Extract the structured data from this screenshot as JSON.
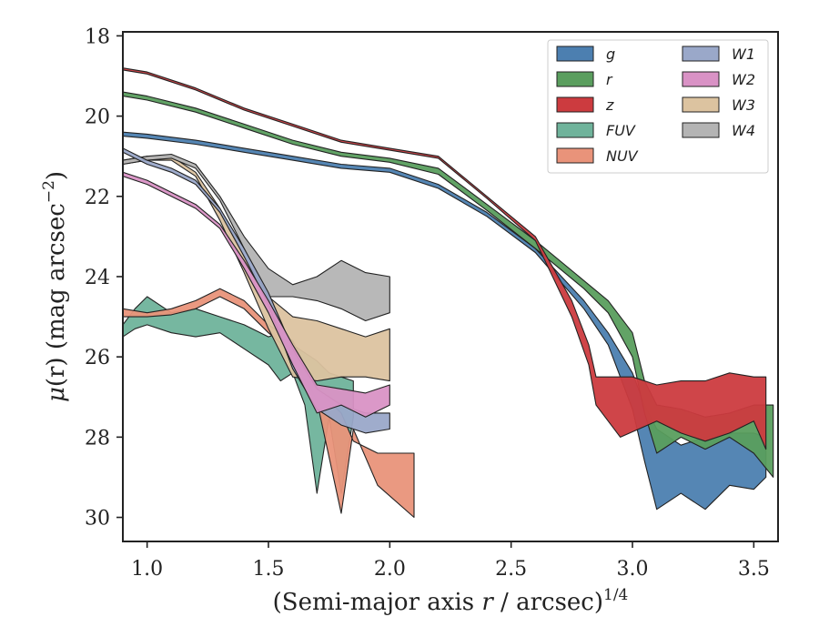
{
  "chart_data": {
    "type": "area",
    "title": "",
    "xlabel": {
      "prefix": "(Semi-major axis ",
      "var": "r",
      "suffix": " / arcsec)",
      "power": "1/4"
    },
    "ylabel": {
      "mu": "μ",
      "rest": "(r) (mag arcsec",
      "power": "−2",
      "close": ")"
    },
    "xlim": [
      0.9,
      3.6
    ],
    "ylim": [
      30.6,
      17.9
    ],
    "y_inverted": true,
    "xticks": [
      1.0,
      1.5,
      2.0,
      2.5,
      3.0,
      3.5
    ],
    "xtick_labels": [
      "1.0",
      "1.5",
      "2.0",
      "2.5",
      "3.0",
      "3.5"
    ],
    "yticks": [
      18,
      20,
      22,
      24,
      26,
      28,
      30
    ],
    "ytick_labels": [
      "18",
      "20",
      "22",
      "24",
      "26",
      "28",
      "30"
    ],
    "grid": false,
    "legend_position": "top-right",
    "legend_columns": 2,
    "series": [
      {
        "name": "g",
        "color": "#4c7fb0",
        "upper": [
          [
            0.9,
            20.4
          ],
          [
            1.0,
            20.45
          ],
          [
            1.2,
            20.6
          ],
          [
            1.4,
            20.8
          ],
          [
            1.6,
            21.0
          ],
          [
            1.8,
            21.2
          ],
          [
            2.0,
            21.3
          ],
          [
            2.2,
            21.7
          ],
          [
            2.4,
            22.4
          ],
          [
            2.6,
            23.3
          ],
          [
            2.8,
            24.6
          ],
          [
            2.9,
            25.4
          ],
          [
            3.0,
            26.4
          ],
          [
            3.05,
            27.2
          ],
          [
            3.1,
            27.8
          ],
          [
            3.2,
            28.2
          ],
          [
            3.3,
            28.0
          ],
          [
            3.4,
            27.9
          ],
          [
            3.5,
            27.9
          ],
          [
            3.55,
            28.0
          ]
        ],
        "lower": [
          [
            0.9,
            20.5
          ],
          [
            1.0,
            20.55
          ],
          [
            1.2,
            20.7
          ],
          [
            1.4,
            20.9
          ],
          [
            1.6,
            21.1
          ],
          [
            1.8,
            21.3
          ],
          [
            2.0,
            21.4
          ],
          [
            2.2,
            21.8
          ],
          [
            2.4,
            22.5
          ],
          [
            2.6,
            23.4
          ],
          [
            2.8,
            24.8
          ],
          [
            2.9,
            25.7
          ],
          [
            3.0,
            27.3
          ],
          [
            3.05,
            28.6
          ],
          [
            3.1,
            29.8
          ],
          [
            3.2,
            29.4
          ],
          [
            3.3,
            29.8
          ],
          [
            3.4,
            29.2
          ],
          [
            3.5,
            29.3
          ],
          [
            3.55,
            29.0
          ]
        ]
      },
      {
        "name": "r",
        "color": "#5a9e5e",
        "upper": [
          [
            0.9,
            19.4
          ],
          [
            1.0,
            19.5
          ],
          [
            1.2,
            19.8
          ],
          [
            1.4,
            20.2
          ],
          [
            1.6,
            20.6
          ],
          [
            1.8,
            20.9
          ],
          [
            2.0,
            21.05
          ],
          [
            2.2,
            21.3
          ],
          [
            2.4,
            22.2
          ],
          [
            2.6,
            23.1
          ],
          [
            2.8,
            24.1
          ],
          [
            2.9,
            24.6
          ],
          [
            3.0,
            25.4
          ],
          [
            3.05,
            26.6
          ],
          [
            3.1,
            27.2
          ],
          [
            3.2,
            27.3
          ],
          [
            3.3,
            27.5
          ],
          [
            3.4,
            27.4
          ],
          [
            3.5,
            27.2
          ],
          [
            3.58,
            27.2
          ]
        ],
        "lower": [
          [
            0.9,
            19.5
          ],
          [
            1.0,
            19.6
          ],
          [
            1.2,
            19.9
          ],
          [
            1.4,
            20.3
          ],
          [
            1.6,
            20.7
          ],
          [
            1.8,
            21.0
          ],
          [
            2.0,
            21.15
          ],
          [
            2.2,
            21.45
          ],
          [
            2.4,
            22.35
          ],
          [
            2.6,
            23.3
          ],
          [
            2.8,
            24.3
          ],
          [
            2.9,
            24.9
          ],
          [
            3.0,
            26.0
          ],
          [
            3.05,
            27.4
          ],
          [
            3.1,
            28.4
          ],
          [
            3.2,
            28.0
          ],
          [
            3.3,
            28.3
          ],
          [
            3.4,
            28.0
          ],
          [
            3.5,
            28.4
          ],
          [
            3.58,
            29.0
          ]
        ]
      },
      {
        "name": "z",
        "color": "#cc3b3f",
        "upper": [
          [
            0.9,
            18.8
          ],
          [
            1.0,
            18.9
          ],
          [
            1.2,
            19.3
          ],
          [
            1.4,
            19.8
          ],
          [
            1.6,
            20.2
          ],
          [
            1.8,
            20.6
          ],
          [
            2.0,
            20.8
          ],
          [
            2.2,
            21.0
          ],
          [
            2.4,
            22.0
          ],
          [
            2.6,
            23.0
          ],
          [
            2.75,
            24.6
          ],
          [
            2.82,
            25.7
          ],
          [
            2.85,
            26.5
          ],
          [
            3.0,
            26.5
          ],
          [
            3.1,
            26.7
          ],
          [
            3.2,
            26.6
          ],
          [
            3.3,
            26.6
          ],
          [
            3.4,
            26.4
          ],
          [
            3.5,
            26.5
          ],
          [
            3.55,
            26.5
          ]
        ],
        "lower": [
          [
            0.9,
            18.85
          ],
          [
            1.0,
            18.95
          ],
          [
            1.2,
            19.35
          ],
          [
            1.4,
            19.85
          ],
          [
            1.6,
            20.25
          ],
          [
            1.8,
            20.65
          ],
          [
            2.0,
            20.85
          ],
          [
            2.2,
            21.05
          ],
          [
            2.4,
            22.05
          ],
          [
            2.6,
            23.1
          ],
          [
            2.75,
            25.0
          ],
          [
            2.82,
            26.2
          ],
          [
            2.85,
            27.2
          ],
          [
            2.95,
            28.0
          ],
          [
            3.1,
            27.6
          ],
          [
            3.2,
            27.9
          ],
          [
            3.3,
            28.1
          ],
          [
            3.4,
            27.9
          ],
          [
            3.5,
            27.6
          ],
          [
            3.55,
            28.3
          ]
        ]
      },
      {
        "name": "FUV",
        "color": "#6fb39b",
        "upper": [
          [
            0.9,
            25.2
          ],
          [
            0.95,
            24.8
          ],
          [
            1.0,
            24.5
          ],
          [
            1.1,
            24.9
          ],
          [
            1.2,
            24.8
          ],
          [
            1.3,
            25.0
          ],
          [
            1.4,
            25.2
          ],
          [
            1.5,
            25.5
          ],
          [
            1.55,
            25.4
          ],
          [
            1.6,
            25.7
          ],
          [
            1.7,
            26.1
          ],
          [
            1.75,
            26.4
          ],
          [
            1.8,
            26.5
          ],
          [
            1.85,
            26.6
          ]
        ],
        "lower": [
          [
            0.9,
            25.5
          ],
          [
            0.95,
            25.3
          ],
          [
            1.0,
            25.2
          ],
          [
            1.1,
            25.4
          ],
          [
            1.2,
            25.5
          ],
          [
            1.3,
            25.4
          ],
          [
            1.4,
            25.8
          ],
          [
            1.5,
            26.2
          ],
          [
            1.55,
            26.6
          ],
          [
            1.6,
            26.4
          ],
          [
            1.65,
            27.2
          ],
          [
            1.7,
            29.4
          ],
          [
            1.75,
            27.5
          ],
          [
            1.8,
            29.4
          ],
          [
            1.85,
            27.5
          ]
        ]
      },
      {
        "name": "NUV",
        "color": "#e9937a",
        "upper": [
          [
            0.9,
            24.8
          ],
          [
            1.0,
            24.9
          ],
          [
            1.1,
            24.8
          ],
          [
            1.2,
            24.6
          ],
          [
            1.3,
            24.3
          ],
          [
            1.4,
            24.6
          ],
          [
            1.5,
            25.2
          ],
          [
            1.6,
            25.6
          ],
          [
            1.7,
            26.8
          ],
          [
            1.8,
            27.4
          ],
          [
            1.85,
            28.1
          ],
          [
            1.95,
            28.4
          ],
          [
            2.1,
            28.4
          ]
        ],
        "lower": [
          [
            0.9,
            25.0
          ],
          [
            1.0,
            25.0
          ],
          [
            1.1,
            24.95
          ],
          [
            1.2,
            24.8
          ],
          [
            1.3,
            24.5
          ],
          [
            1.4,
            24.8
          ],
          [
            1.5,
            25.4
          ],
          [
            1.6,
            25.9
          ],
          [
            1.7,
            27.1
          ],
          [
            1.8,
            29.9
          ],
          [
            1.85,
            27.8
          ],
          [
            1.95,
            29.2
          ],
          [
            2.1,
            30.0
          ]
        ]
      },
      {
        "name": "W1",
        "color": "#9aa8c9",
        "upper": [
          [
            0.9,
            20.8
          ],
          [
            1.0,
            21.1
          ],
          [
            1.1,
            21.3
          ],
          [
            1.2,
            21.6
          ],
          [
            1.3,
            22.3
          ],
          [
            1.4,
            23.3
          ],
          [
            1.5,
            24.4
          ],
          [
            1.6,
            25.8
          ],
          [
            1.7,
            26.8
          ],
          [
            1.8,
            27.2
          ],
          [
            1.9,
            27.4
          ],
          [
            2.0,
            27.4
          ]
        ],
        "lower": [
          [
            0.9,
            20.9
          ],
          [
            1.0,
            21.2
          ],
          [
            1.1,
            21.4
          ],
          [
            1.2,
            21.7
          ],
          [
            1.3,
            22.4
          ],
          [
            1.4,
            23.5
          ],
          [
            1.5,
            24.7
          ],
          [
            1.6,
            26.3
          ],
          [
            1.7,
            27.3
          ],
          [
            1.8,
            27.7
          ],
          [
            1.9,
            27.9
          ],
          [
            2.0,
            27.8
          ]
        ]
      },
      {
        "name": "W2",
        "color": "#d992c5",
        "upper": [
          [
            0.9,
            21.4
          ],
          [
            1.0,
            21.6
          ],
          [
            1.1,
            21.9
          ],
          [
            1.2,
            22.2
          ],
          [
            1.3,
            22.7
          ],
          [
            1.4,
            23.6
          ],
          [
            1.5,
            24.6
          ],
          [
            1.6,
            25.7
          ],
          [
            1.7,
            26.7
          ],
          [
            1.8,
            26.8
          ],
          [
            1.9,
            26.9
          ],
          [
            2.0,
            26.7
          ]
        ],
        "lower": [
          [
            0.9,
            21.5
          ],
          [
            1.0,
            21.7
          ],
          [
            1.1,
            22.0
          ],
          [
            1.2,
            22.3
          ],
          [
            1.3,
            22.8
          ],
          [
            1.4,
            23.8
          ],
          [
            1.5,
            24.9
          ],
          [
            1.6,
            26.2
          ],
          [
            1.7,
            27.4
          ],
          [
            1.8,
            27.2
          ],
          [
            1.9,
            27.5
          ],
          [
            2.0,
            27.2
          ]
        ]
      },
      {
        "name": "W3",
        "color": "#dcc3a0",
        "upper": [
          [
            0.9,
            21.1
          ],
          [
            1.0,
            21.0
          ],
          [
            1.1,
            21.0
          ],
          [
            1.2,
            21.4
          ],
          [
            1.3,
            22.3
          ],
          [
            1.4,
            23.5
          ],
          [
            1.5,
            24.5
          ],
          [
            1.6,
            25.0
          ],
          [
            1.7,
            25.1
          ],
          [
            1.8,
            25.3
          ],
          [
            1.9,
            25.5
          ],
          [
            2.0,
            25.3
          ]
        ],
        "lower": [
          [
            0.9,
            21.2
          ],
          [
            1.0,
            21.1
          ],
          [
            1.1,
            21.1
          ],
          [
            1.2,
            21.5
          ],
          [
            1.3,
            22.6
          ],
          [
            1.4,
            23.9
          ],
          [
            1.5,
            25.3
          ],
          [
            1.6,
            26.5
          ],
          [
            1.7,
            26.6
          ],
          [
            1.8,
            26.5
          ],
          [
            1.9,
            26.5
          ],
          [
            2.0,
            26.6
          ]
        ]
      },
      {
        "name": "W4",
        "color": "#b4b4b4",
        "upper": [
          [
            0.9,
            21.1
          ],
          [
            1.0,
            21.0
          ],
          [
            1.1,
            20.95
          ],
          [
            1.2,
            21.2
          ],
          [
            1.3,
            22.0
          ],
          [
            1.4,
            23.0
          ],
          [
            1.5,
            23.8
          ],
          [
            1.6,
            24.2
          ],
          [
            1.7,
            24.0
          ],
          [
            1.8,
            23.6
          ],
          [
            1.9,
            23.9
          ],
          [
            2.0,
            24.0
          ]
        ],
        "lower": [
          [
            0.9,
            21.2
          ],
          [
            1.0,
            21.1
          ],
          [
            1.1,
            21.05
          ],
          [
            1.2,
            21.3
          ],
          [
            1.3,
            22.1
          ],
          [
            1.4,
            23.3
          ],
          [
            1.5,
            24.5
          ],
          [
            1.6,
            24.5
          ],
          [
            1.7,
            24.6
          ],
          [
            1.8,
            24.8
          ],
          [
            1.9,
            25.1
          ],
          [
            2.0,
            24.9
          ]
        ]
      }
    ]
  }
}
